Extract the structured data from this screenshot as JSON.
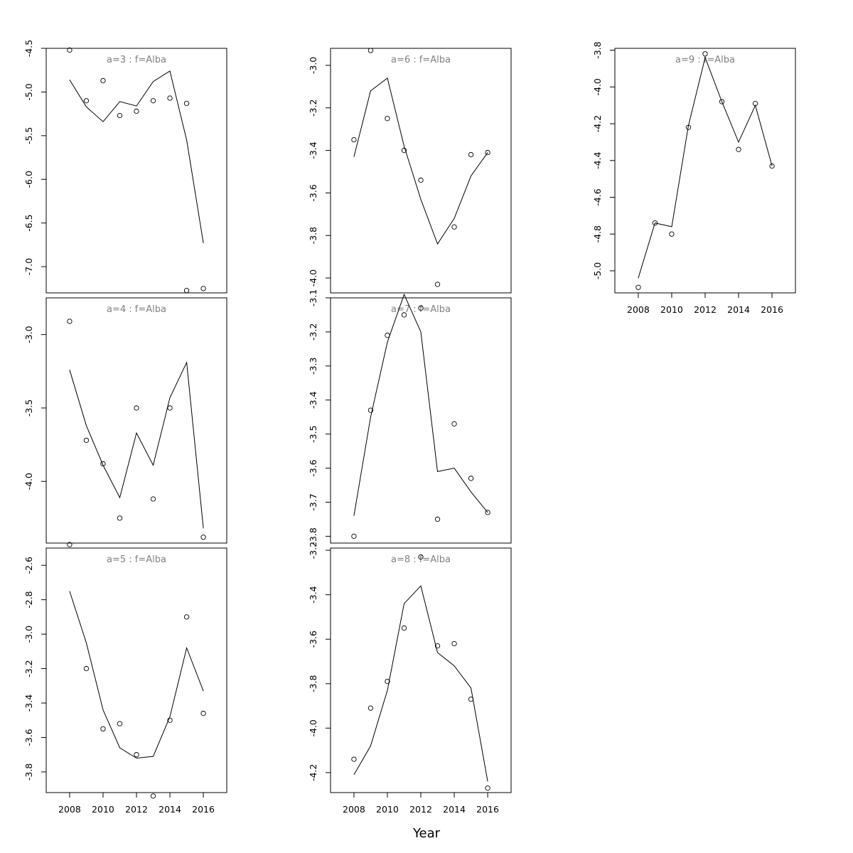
{
  "chart_data": {
    "type": "scatter",
    "xlabel": "Year",
    "x": [
      2008,
      2009,
      2010,
      2011,
      2012,
      2013,
      2014,
      2015,
      2016
    ],
    "xticks": [
      2008,
      2010,
      2012,
      2014,
      2016
    ],
    "xlim": [
      2006.6,
      2017.4
    ],
    "grid": false,
    "panels": [
      {
        "title": "a=3 : f=Alba",
        "observed": [
          -4.52,
          -5.1,
          -4.87,
          -5.27,
          -5.22,
          -5.1,
          -5.07,
          -5.13,
          -7.25
        ],
        "fitted": [
          -4.86,
          -5.17,
          -5.34,
          -5.11,
          -5.16,
          -4.88,
          -4.76,
          -5.55,
          -6.73
        ],
        "ylim": [
          -7.3,
          -4.5
        ],
        "yticks": [
          -7.0,
          -6.5,
          -6.0,
          -5.5,
          -5.0,
          -4.5
        ],
        "ytick_labels": [
          "-7.0",
          "-6.5",
          "-6.0",
          "-5.5",
          "-5.0",
          "-4.5"
        ]
      },
      {
        "title": "a=4 : f=Alba",
        "observed": [
          -2.91,
          -3.72,
          -3.88,
          -4.25,
          -3.5,
          -4.12,
          -3.5,
          -2.7,
          -4.38
        ],
        "fitted": [
          -3.24,
          -3.62,
          -3.89,
          -4.11,
          -3.67,
          -3.89,
          -3.43,
          -3.19,
          -4.32
        ],
        "ylim": [
          -4.42,
          -2.75
        ],
        "yticks": [
          -4.0,
          -3.5,
          -3.0
        ],
        "ytick_labels": [
          "-4.0",
          "-3.5",
          "-3.0"
        ]
      },
      {
        "title": "a=5 : f=Alba",
        "observed": [
          -2.48,
          -3.2,
          -3.55,
          -3.52,
          -3.7,
          -3.94,
          -3.5,
          -2.9,
          -3.46
        ],
        "fitted": [
          -2.75,
          -3.05,
          -3.44,
          -3.66,
          -3.72,
          -3.71,
          -3.48,
          -3.08,
          -3.33
        ],
        "ylim": [
          -3.92,
          -2.5
        ],
        "yticks": [
          -3.8,
          -3.6,
          -3.4,
          -3.2,
          -3.0,
          -2.8,
          -2.6
        ],
        "ytick_labels": [
          "-3.8",
          "-3.6",
          "-3.4",
          "-3.2",
          "-3.0",
          "-2.8",
          "-2.6"
        ]
      },
      {
        "title": "a=6 : f=Alba",
        "observed": [
          -3.35,
          -2.93,
          -3.25,
          -3.4,
          -3.54,
          -4.03,
          -3.76,
          -3.42,
          -3.41
        ],
        "fitted": [
          -3.43,
          -3.12,
          -3.06,
          -3.38,
          -3.63,
          -3.84,
          -3.72,
          -3.52,
          -3.41
        ],
        "ylim": [
          -4.07,
          -2.92
        ],
        "yticks": [
          -4.0,
          -3.8,
          -3.6,
          -3.4,
          -3.2,
          -3.0
        ],
        "ytick_labels": [
          "-4.0",
          "-3.8",
          "-3.6",
          "-3.4",
          "-3.2",
          "-3.0"
        ]
      },
      {
        "title": "a=7 : f=Alba",
        "observed": [
          -3.8,
          -3.43,
          -3.21,
          -3.15,
          -3.13,
          -3.75,
          -3.47,
          -3.63,
          -3.73
        ],
        "fitted": [
          -3.74,
          -3.45,
          -3.23,
          -3.09,
          -3.2,
          -3.61,
          -3.6,
          -3.67,
          -3.73
        ],
        "ylim": [
          -3.82,
          -3.1
        ],
        "yticks": [
          -3.8,
          -3.7,
          -3.6,
          -3.5,
          -3.4,
          -3.3,
          -3.2,
          -3.1
        ],
        "ytick_labels": [
          "-3.8",
          "-3.7",
          "-3.6",
          "-3.5",
          "-3.4",
          "-3.3",
          "-3.2",
          "-3.1"
        ]
      },
      {
        "title": "a=8 : f=Alba",
        "observed": [
          -4.14,
          -3.91,
          -3.79,
          -3.55,
          -3.23,
          -3.63,
          -3.62,
          -3.87,
          -4.27
        ],
        "fitted": [
          -4.21,
          -4.08,
          -3.83,
          -3.44,
          -3.36,
          -3.66,
          -3.72,
          -3.82,
          -4.24
        ],
        "ylim": [
          -4.29,
          -3.19
        ],
        "yticks": [
          -4.2,
          -4.0,
          -3.8,
          -3.6,
          -3.4,
          -3.2
        ],
        "ytick_labels": [
          "-4.2",
          "-4.0",
          "-3.8",
          "-3.6",
          "-3.4",
          "-3.2"
        ]
      },
      {
        "title": "a=9 : f=Alba",
        "observed": [
          -5.09,
          -4.74,
          -4.8,
          -4.22,
          -3.82,
          -4.08,
          -4.34,
          -4.09,
          -4.43
        ],
        "fitted": [
          -5.04,
          -4.74,
          -4.76,
          -4.21,
          -3.84,
          -4.08,
          -4.3,
          -4.1,
          -4.43
        ],
        "ylim": [
          -5.12,
          -3.79
        ],
        "yticks": [
          -5.0,
          -4.8,
          -4.6,
          -4.4,
          -4.2,
          -4.0,
          -3.8
        ],
        "ytick_labels": [
          "-5.0",
          "-4.8",
          "-4.6",
          "-4.4",
          "-4.2",
          "-4.0",
          "-3.8"
        ]
      }
    ]
  }
}
